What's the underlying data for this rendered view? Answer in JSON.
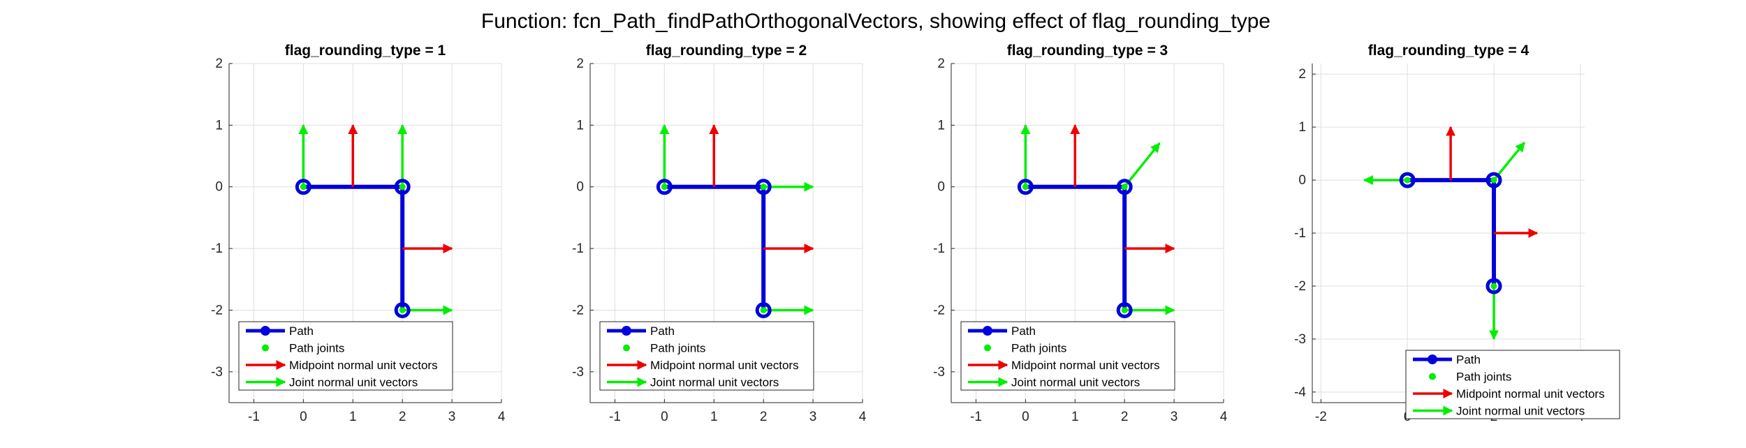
{
  "figure_title": "Function: fcn_Path_findPathOrthogonalVectors, showing effect of flag_rounding_type",
  "colors": {
    "path": "#0000dd",
    "joint": "#00ee00",
    "midpoint": "#ee0000"
  },
  "chart_data": [
    {
      "type": "line",
      "title": "flag_rounding_type = 1",
      "xlim": [
        -1.5,
        4
      ],
      "ylim": [
        -3.5,
        2
      ],
      "xticks": [
        -1,
        0,
        1,
        2,
        3,
        4
      ],
      "yticks": [
        -3,
        -2,
        -1,
        0,
        1,
        2
      ],
      "legend_position": "bottom-left",
      "path": [
        [
          0,
          0
        ],
        [
          2,
          0
        ],
        [
          2,
          -2
        ]
      ],
      "midpoint_vectors": [
        {
          "x": 1,
          "y": 0,
          "dx": 0,
          "dy": 1
        },
        {
          "x": 2,
          "y": -1,
          "dx": 1,
          "dy": 0
        }
      ],
      "joint_vectors": [
        {
          "x": 0,
          "y": 0,
          "dx": 0,
          "dy": 1
        },
        {
          "x": 2,
          "y": 0,
          "dx": 0,
          "dy": 1
        },
        {
          "x": 2,
          "y": -2,
          "dx": 1,
          "dy": 0
        }
      ],
      "legend": [
        "Path",
        "Path joints",
        "Midpoint normal unit vectors",
        "Joint normal unit vectors"
      ]
    },
    {
      "type": "line",
      "title": "flag_rounding_type = 2",
      "xlim": [
        -1.5,
        4
      ],
      "ylim": [
        -3.5,
        2
      ],
      "xticks": [
        -1,
        0,
        1,
        2,
        3,
        4
      ],
      "yticks": [
        -3,
        -2,
        -1,
        0,
        1,
        2
      ],
      "legend_position": "bottom-left",
      "path": [
        [
          0,
          0
        ],
        [
          2,
          0
        ],
        [
          2,
          -2
        ]
      ],
      "midpoint_vectors": [
        {
          "x": 1,
          "y": 0,
          "dx": 0,
          "dy": 1
        },
        {
          "x": 2,
          "y": -1,
          "dx": 1,
          "dy": 0
        }
      ],
      "joint_vectors": [
        {
          "x": 0,
          "y": 0,
          "dx": 0,
          "dy": 1
        },
        {
          "x": 2,
          "y": 0,
          "dx": 1,
          "dy": 0
        },
        {
          "x": 2,
          "y": -2,
          "dx": 1,
          "dy": 0
        }
      ],
      "legend": [
        "Path",
        "Path joints",
        "Midpoint normal unit vectors",
        "Joint normal unit vectors"
      ]
    },
    {
      "type": "line",
      "title": "flag_rounding_type = 3",
      "xlim": [
        -1.5,
        4
      ],
      "ylim": [
        -3.5,
        2
      ],
      "xticks": [
        -1,
        0,
        1,
        2,
        3,
        4
      ],
      "yticks": [
        -3,
        -2,
        -1,
        0,
        1,
        2
      ],
      "legend_position": "bottom-left",
      "path": [
        [
          0,
          0
        ],
        [
          2,
          0
        ],
        [
          2,
          -2
        ]
      ],
      "midpoint_vectors": [
        {
          "x": 1,
          "y": 0,
          "dx": 0,
          "dy": 1
        },
        {
          "x": 2,
          "y": -1,
          "dx": 1,
          "dy": 0
        }
      ],
      "joint_vectors": [
        {
          "x": 0,
          "y": 0,
          "dx": 0,
          "dy": 1
        },
        {
          "x": 2,
          "y": 0,
          "dx": 0.7071,
          "dy": 0.7071
        },
        {
          "x": 2,
          "y": -2,
          "dx": 1,
          "dy": 0
        }
      ],
      "legend": [
        "Path",
        "Path joints",
        "Midpoint normal unit vectors",
        "Joint normal unit vectors"
      ]
    },
    {
      "type": "line",
      "title": "flag_rounding_type = 4",
      "xlim": [
        -2.2,
        4.1
      ],
      "ylim": [
        -4.2,
        2.2
      ],
      "xticks": [
        -2,
        0,
        2,
        4
      ],
      "yticks": [
        -4,
        -3,
        -2,
        -1,
        0,
        1,
        2
      ],
      "legend_position": "bottom-right",
      "path": [
        [
          0,
          0
        ],
        [
          2,
          0
        ],
        [
          2,
          -2
        ]
      ],
      "midpoint_vectors": [
        {
          "x": 1,
          "y": 0,
          "dx": 0,
          "dy": 1
        },
        {
          "x": 2,
          "y": -1,
          "dx": 1,
          "dy": 0
        }
      ],
      "joint_vectors": [
        {
          "x": 0,
          "y": 0,
          "dx": -1,
          "dy": 0
        },
        {
          "x": 2,
          "y": 0,
          "dx": 0.7071,
          "dy": 0.7071
        },
        {
          "x": 2,
          "y": -2,
          "dx": 0,
          "dy": -1
        }
      ],
      "legend": [
        "Path",
        "Path joints",
        "Midpoint normal unit vectors",
        "Joint normal unit vectors"
      ]
    }
  ]
}
